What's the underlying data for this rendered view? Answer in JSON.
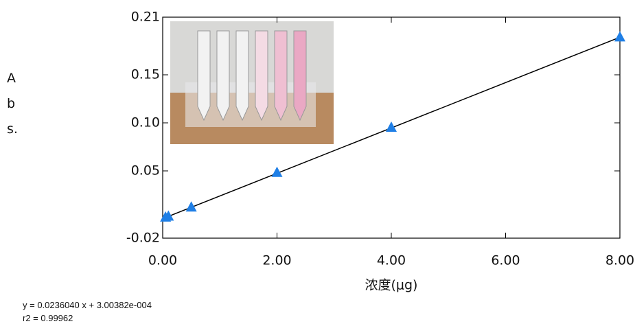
{
  "chart_data": {
    "type": "scatter",
    "x_label": "浓度(μg)",
    "y_label": "Abs.",
    "annotations": [
      "y = 0.0236040 x + 3.00382e-004",
      "r2 = 0.99962"
    ],
    "series": [
      {
        "color": "#1f7fe6",
        "x": [
          0.05,
          0.1,
          0.5,
          2,
          4,
          8
        ],
        "values": [
          0.0015,
          0.0025,
          0.012,
          0.048,
          0.095,
          0.189
        ]
      }
    ],
    "fit_line": {
      "color": "#000000",
      "x": [
        0,
        8
      ],
      "values": [
        0.0003,
        0.1891
      ]
    },
    "xlim": [
      0,
      8
    ],
    "ylim": [
      -0.02,
      0.21
    ],
    "xticks": [
      {
        "value": 0,
        "label": "0.00"
      },
      {
        "value": 2,
        "label": "2.00"
      },
      {
        "value": 4,
        "label": "4.00"
      },
      {
        "value": 6,
        "label": "6.00"
      },
      {
        "value": 8,
        "label": "8.00"
      }
    ],
    "yticks": [
      -0.02,
      0.05,
      {
        "value": 0.1,
        "label": "0.10"
      },
      0.15,
      0.21
    ],
    "grid": false
  }
}
